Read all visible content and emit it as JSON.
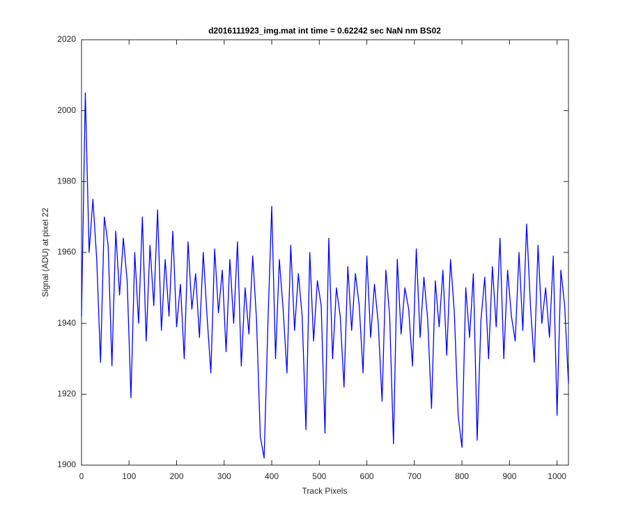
{
  "chart_data": {
    "type": "line",
    "title": "d2016111923_img.mat int time = 0.62242 sec  NaN nm BS02",
    "x_label": "Track Pixels",
    "y_label": "Signal (ADU) at pixel 22",
    "x": [
      0,
      8,
      16,
      24,
      32,
      40,
      48,
      56,
      64,
      72,
      80,
      88,
      96,
      104,
      112,
      120,
      128,
      136,
      144,
      152,
      160,
      168,
      176,
      184,
      192,
      200,
      208,
      216,
      224,
      232,
      240,
      248,
      256,
      264,
      272,
      280,
      288,
      296,
      304,
      312,
      320,
      328,
      336,
      344,
      352,
      360,
      368,
      376,
      384,
      392,
      400,
      408,
      416,
      424,
      432,
      440,
      448,
      456,
      464,
      472,
      480,
      488,
      496,
      504,
      512,
      520,
      528,
      536,
      544,
      552,
      560,
      568,
      576,
      584,
      592,
      600,
      608,
      616,
      624,
      632,
      640,
      648,
      656,
      664,
      672,
      680,
      688,
      696,
      704,
      712,
      720,
      728,
      736,
      744,
      752,
      760,
      768,
      776,
      784,
      792,
      800,
      808,
      816,
      824,
      832,
      840,
      848,
      856,
      864,
      872,
      880,
      888,
      896,
      904,
      912,
      920,
      928,
      936,
      944,
      952,
      960,
      968,
      976,
      984,
      992,
      1000,
      1008,
      1016,
      1024
    ],
    "series": [
      {
        "name": "signal",
        "color": "#0000ff",
        "values": [
          1942,
          2005,
          1960,
          1975,
          1958,
          1929,
          1970,
          1962,
          1928,
          1966,
          1948,
          1964,
          1952,
          1919,
          1960,
          1940,
          1970,
          1935,
          1962,
          1945,
          1972,
          1938,
          1958,
          1942,
          1966,
          1939,
          1951,
          1930,
          1963,
          1944,
          1954,
          1936,
          1960,
          1942,
          1926,
          1961,
          1943,
          1955,
          1932,
          1958,
          1940,
          1963,
          1928,
          1950,
          1937,
          1959,
          1941,
          1908,
          1902,
          1940,
          1973,
          1930,
          1958,
          1944,
          1926,
          1962,
          1938,
          1954,
          1942,
          1910,
          1960,
          1935,
          1952,
          1945,
          1909,
          1964,
          1930,
          1950,
          1942,
          1922,
          1956,
          1938,
          1954,
          1945,
          1926,
          1959,
          1936,
          1951,
          1940,
          1918,
          1955,
          1942,
          1906,
          1958,
          1937,
          1950,
          1944,
          1928,
          1961,
          1936,
          1953,
          1941,
          1916,
          1952,
          1939,
          1955,
          1931,
          1958,
          1943,
          1914,
          1905,
          1950,
          1936,
          1954,
          1907,
          1941,
          1953,
          1930,
          1956,
          1939,
          1964,
          1930,
          1955,
          1942,
          1935,
          1960,
          1938,
          1968,
          1945,
          1929,
          1962,
          1940,
          1950,
          1936,
          1959,
          1914,
          1955,
          1945,
          1923
        ]
      }
    ],
    "xlim": [
      0,
      1024
    ],
    "ylim": [
      1900,
      2020
    ],
    "xticks": [
      0,
      100,
      200,
      300,
      400,
      500,
      600,
      700,
      800,
      900,
      1000
    ],
    "yticks": [
      1900,
      1920,
      1940,
      1960,
      1980,
      2000,
      2020
    ]
  }
}
